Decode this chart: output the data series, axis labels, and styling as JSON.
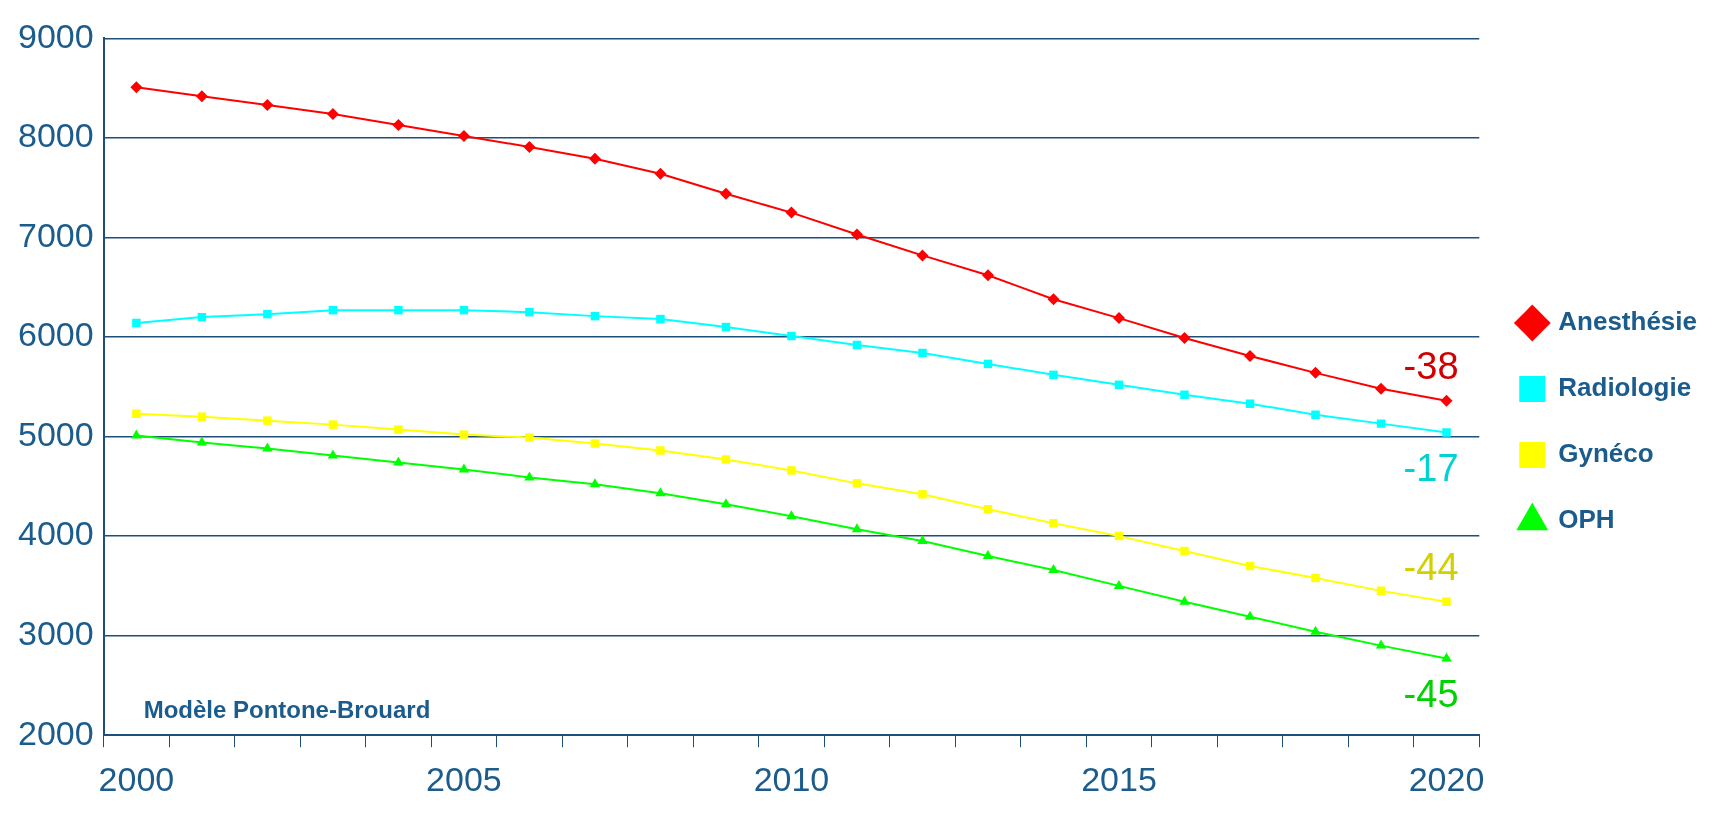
{
  "chart_data": {
    "type": "line",
    "categories": [
      "2000",
      null,
      null,
      null,
      null,
      "2005",
      null,
      null,
      null,
      null,
      "2010",
      null,
      null,
      null,
      null,
      "2015",
      null,
      null,
      null,
      null,
      "2020"
    ],
    "series": [
      {
        "name": "Anesthésie",
        "color": "#ff0000",
        "marker": "diamond",
        "values": [
          8510,
          8420,
          8330,
          8240,
          8130,
          8020,
          7910,
          7790,
          7640,
          7440,
          7250,
          7030,
          6820,
          6620,
          6380,
          6190,
          5990,
          5810,
          5640,
          5480,
          5360
        ]
      },
      {
        "name": "Radiologie",
        "color": "#00ffff",
        "marker": "square",
        "values": [
          6140,
          6200,
          6230,
          6270,
          6270,
          6270,
          6250,
          6210,
          6180,
          6100,
          6010,
          5920,
          5840,
          5730,
          5620,
          5520,
          5420,
          5330,
          5220,
          5130,
          5040
        ]
      },
      {
        "name": "Gynéco",
        "color": "#ffff00",
        "marker": "square",
        "values": [
          5230,
          5200,
          5160,
          5120,
          5070,
          5020,
          4990,
          4930,
          4860,
          4770,
          4660,
          4530,
          4420,
          4270,
          4130,
          4000,
          3850,
          3700,
          3580,
          3450,
          3340
        ]
      },
      {
        "name": "OPH",
        "color": "#00ff00",
        "marker": "triangle",
        "values": [
          5010,
          4940,
          4880,
          4810,
          4740,
          4670,
          4590,
          4520,
          4430,
          4320,
          4200,
          4070,
          3950,
          3800,
          3660,
          3500,
          3340,
          3190,
          3040,
          2900,
          2770
        ]
      }
    ],
    "ylim": [
      2000,
      9000
    ],
    "yticks": [
      2000,
      3000,
      4000,
      5000,
      6000,
      7000,
      8000,
      9000
    ],
    "grid": "y",
    "legend": "right",
    "line_style": "solid",
    "annotations": [
      "-38",
      "-17",
      "-44",
      "-45",
      "Modèle Pontone-Brouard"
    ]
  }
}
